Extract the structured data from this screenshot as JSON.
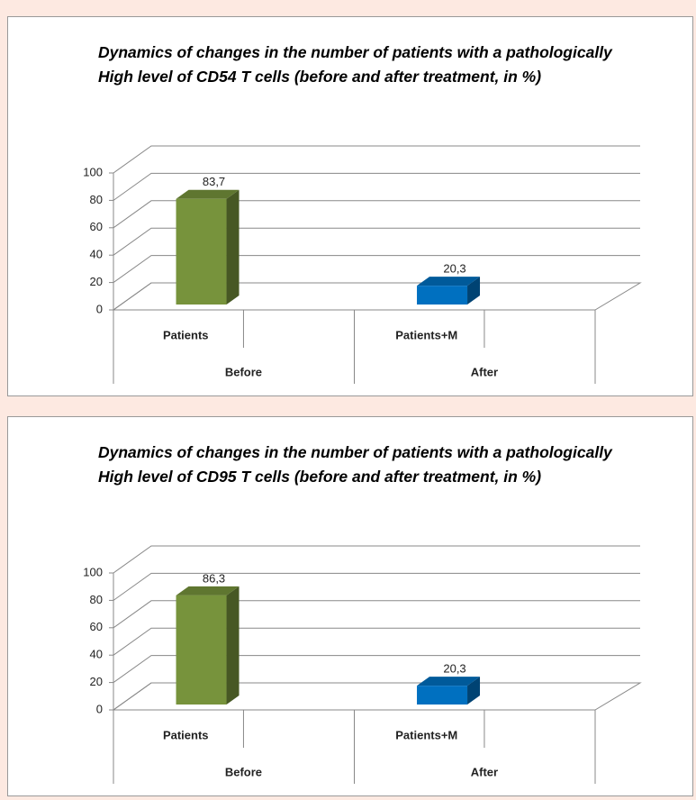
{
  "chart_data": [
    {
      "type": "bar3d",
      "title": "Dynamics of changes in the number of patients with a pathologically High level of CD54 T cells (before and after treatment, in %)",
      "categories": [
        "Patients",
        "Patients+M"
      ],
      "groups": [
        "Before",
        "After"
      ],
      "values": [
        83.7,
        20.3
      ],
      "value_labels": [
        "83,7",
        "20,3"
      ],
      "colors": [
        "#77933c",
        "#0070c0"
      ],
      "ylim": [
        0,
        100
      ],
      "yticks": [
        0,
        20,
        40,
        60,
        80,
        100
      ],
      "grid": true
    },
    {
      "type": "bar3d",
      "title": "Dynamics of changes in the number of patients with a pathologically High level of CD95 T cells (before and after treatment, in %)",
      "categories": [
        "Patients",
        "Patients+M"
      ],
      "groups": [
        "Before",
        "After"
      ],
      "values": [
        86.3,
        20.3
      ],
      "value_labels": [
        "86,3",
        "20,3"
      ],
      "colors": [
        "#77933c",
        "#0070c0"
      ],
      "ylim": [
        0,
        100
      ],
      "yticks": [
        0,
        20,
        40,
        60,
        80,
        100
      ],
      "grid": true
    }
  ]
}
